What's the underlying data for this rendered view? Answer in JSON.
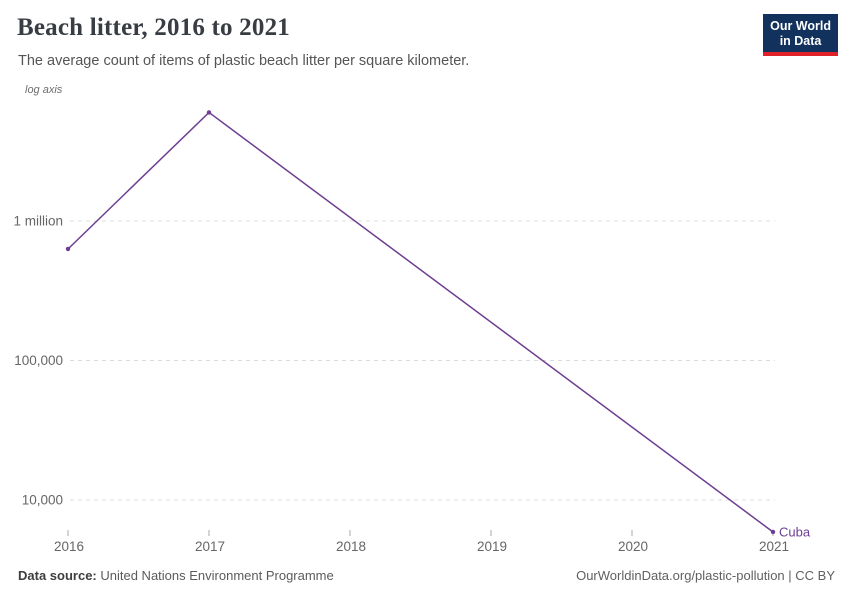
{
  "header": {
    "title": "Beach litter, 2016 to 2021",
    "subtitle": "The average count of items of plastic beach litter per square kilometer.",
    "logo": {
      "line1": "Our World",
      "line2": "in Data"
    }
  },
  "chart_data": {
    "type": "line",
    "axis_note": "log axis",
    "yscale": "log",
    "x": [
      2016,
      2017,
      2021
    ],
    "series": [
      {
        "name": "Cuba",
        "values": [
          630000,
          6000000,
          5900
        ],
        "color": "#6d3e91"
      }
    ],
    "xticks": [
      2016,
      2017,
      2018,
      2019,
      2020,
      2021
    ],
    "yticks": [
      {
        "value": 10000,
        "label": "10,000"
      },
      {
        "value": 100000,
        "label": "100,000"
      },
      {
        "value": 1000000,
        "label": "1 million"
      }
    ],
    "xlim": [
      2016,
      2021
    ],
    "ylim": [
      5000,
      7000000
    ],
    "grid": "dashed horizontal",
    "legend_position": "end-of-line label"
  },
  "footer": {
    "source_label": "Data source:",
    "source": " United Nations Environment Programme",
    "credit": "OurWorldinData.org/plastic-pollution | CC BY"
  },
  "colors": {
    "line": "#6d3e91",
    "grid": "#dcdcdc",
    "tick_label": "#666666",
    "tick_mark": "#a8a8a8",
    "title": "#383d43",
    "logo_bg": "#12315c",
    "logo_stripe": "#e02128"
  }
}
